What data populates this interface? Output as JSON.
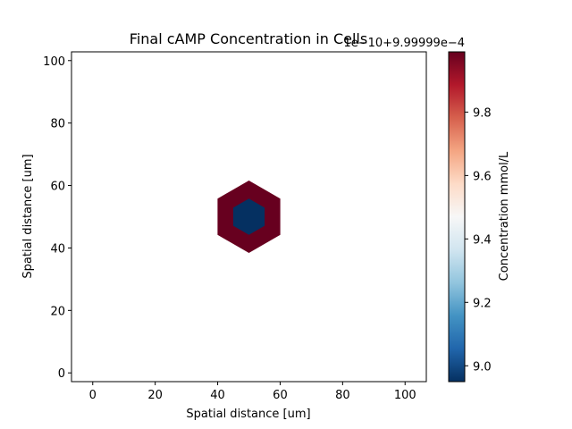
{
  "chart_data": {
    "type": "heatmap",
    "title": "Final cAMP Concentration in Cells",
    "xlabel": "Spatial distance [um]",
    "ylabel": "Spatial distance [um]",
    "xlim": [
      -6.8,
      106.8
    ],
    "ylim": [
      -2.8,
      102.8
    ],
    "xticks": [
      0,
      20,
      40,
      60,
      80,
      100
    ],
    "yticks": [
      0,
      20,
      40,
      60,
      80,
      100
    ],
    "cells": [
      {
        "name": "outer-cell",
        "center": [
          50,
          50
        ],
        "radius": 11.6,
        "value": 9.99
      },
      {
        "name": "inner-cell",
        "center": [
          50,
          50
        ],
        "radius": 5.8,
        "value": 8.95
      }
    ],
    "colorbar": {
      "label": "Concentration mmol/L",
      "offset_label": "1e−10+9.99999e−4",
      "colormap": "RdBu_r",
      "vmin": 8.95,
      "vmax": 9.99,
      "ticks": [
        9.0,
        9.2,
        9.4,
        9.6,
        9.8
      ],
      "tick_labels": [
        "9.0",
        "9.2",
        "9.4",
        "9.6",
        "9.8"
      ]
    }
  }
}
